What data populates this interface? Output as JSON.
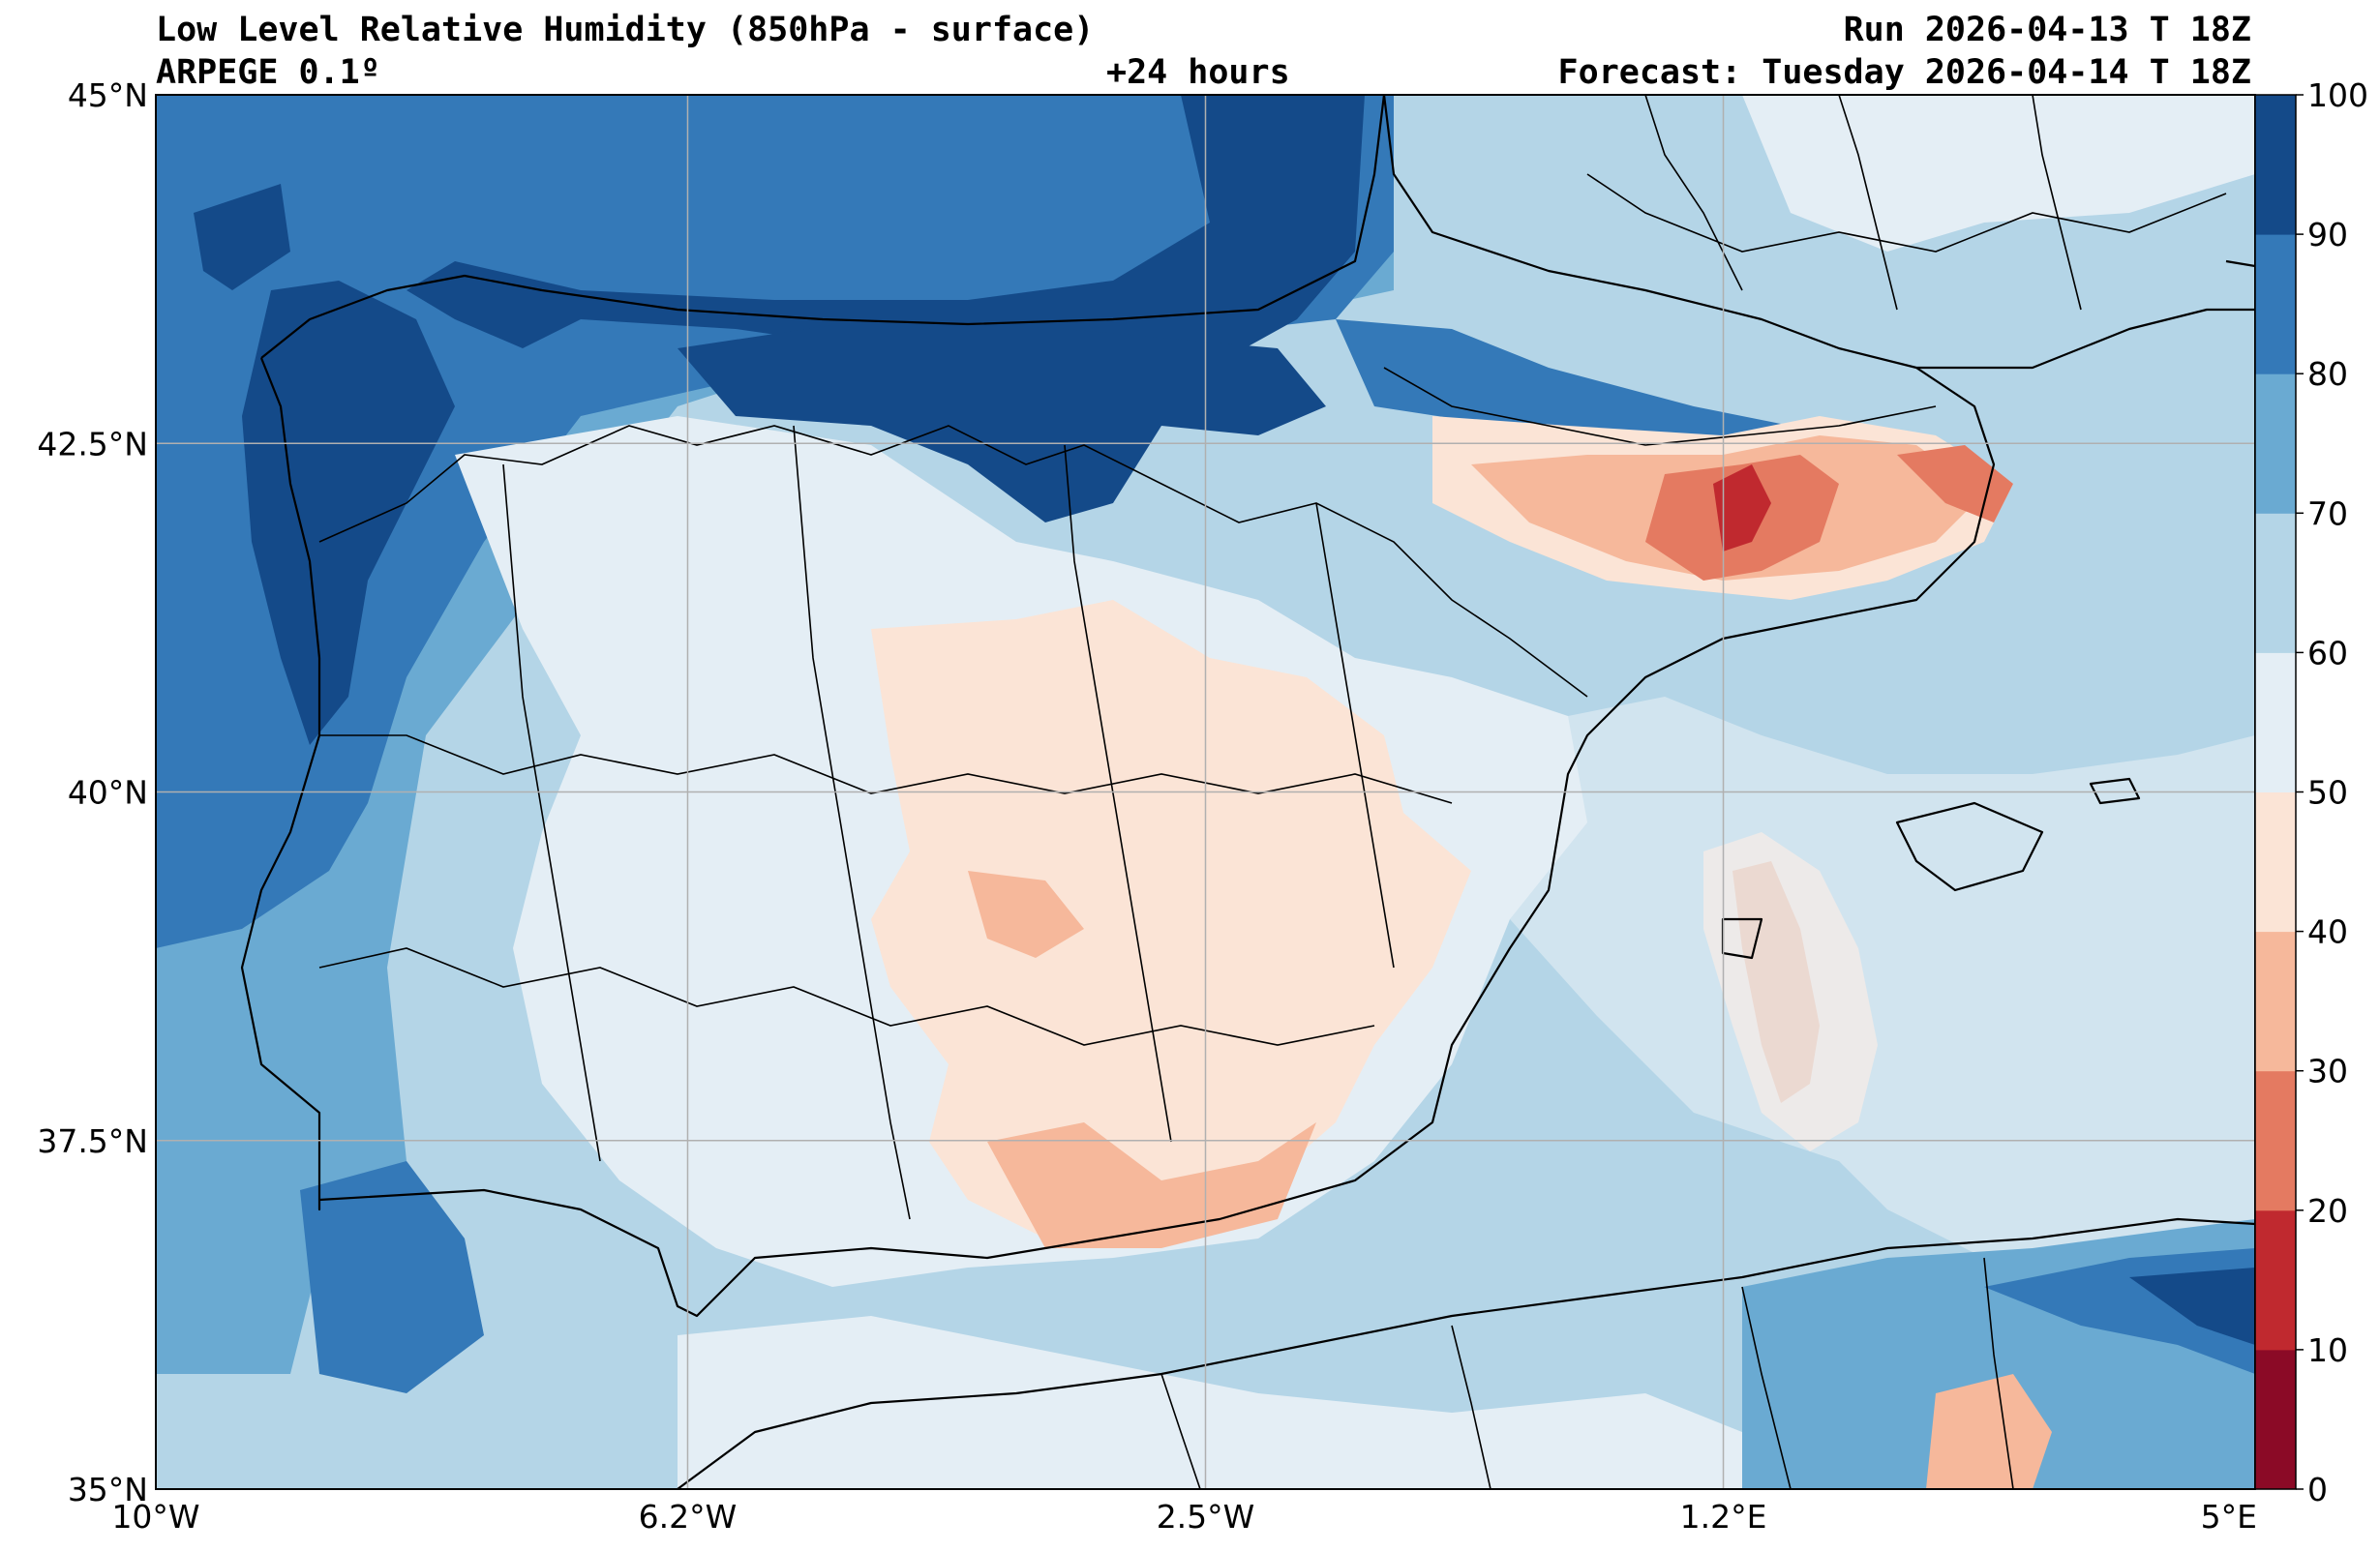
{
  "header": {
    "title": "Low Level Relative Humidity (850hPa - surface)",
    "model": "ARPEGE 0.1º",
    "lead": "+24 hours",
    "run": "Run 2026-04-13 T 18Z",
    "forecast": "Forecast: Tuesday 2026-04-14 T 18Z"
  },
  "map": {
    "extent": {
      "lon": [
        -10,
        5
      ],
      "lat": [
        35,
        45
      ]
    },
    "lon_ticks": [
      {
        "value": -10,
        "label": "10°W"
      },
      {
        "value": -6.2,
        "label": "6.2°W"
      },
      {
        "value": -2.5,
        "label": "2.5°W"
      },
      {
        "value": 1.2,
        "label": "1.2°E"
      },
      {
        "value": 5,
        "label": "5°E"
      }
    ],
    "lat_ticks": [
      {
        "value": 35,
        "label": "35°N"
      },
      {
        "value": 37.5,
        "label": "37.5°N"
      },
      {
        "value": 40,
        "label": "40°N"
      },
      {
        "value": 42.5,
        "label": "42.5°N"
      },
      {
        "value": 45,
        "label": "45°N"
      }
    ],
    "grid": true
  },
  "colorbar": {
    "levels": [
      0,
      10,
      20,
      30,
      40,
      50,
      60,
      70,
      80,
      90,
      100
    ],
    "colors": [
      "#8b0a26",
      "#c0292f",
      "#e47a61",
      "#f6b89b",
      "#fbe4d6",
      "#e4eef5",
      "#b4d5e7",
      "#6aaad2",
      "#3479b8",
      "#144a89"
    ],
    "labels": [
      "0",
      "10",
      "20",
      "30",
      "40",
      "50",
      "60",
      "70",
      "80",
      "90",
      "100"
    ]
  },
  "colors": {
    "background_sea": "#b4d5e7",
    "coastline": "#000000",
    "gridline": "#b0b0b0"
  }
}
